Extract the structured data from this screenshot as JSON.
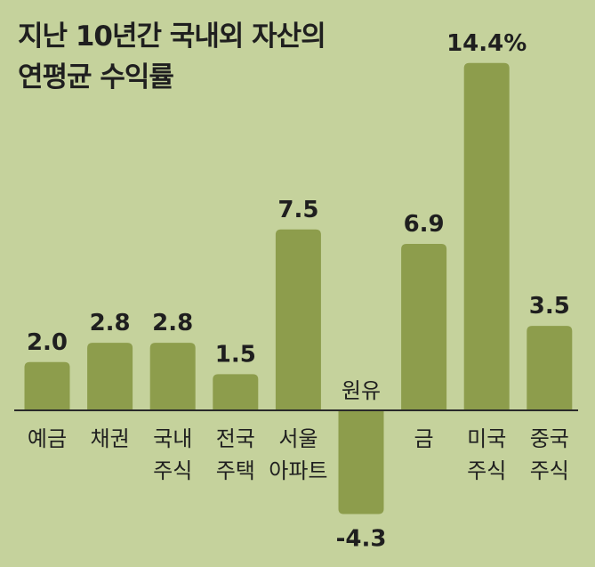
{
  "chart_data": {
    "type": "bar",
    "title_lines": [
      "지난 10년간 국내외 자산의",
      "연평균 수익률"
    ],
    "categories": [
      [
        "예금"
      ],
      [
        "채권"
      ],
      [
        "국내",
        "주식"
      ],
      [
        "전국",
        "주택"
      ],
      [
        "서울",
        "아파트"
      ],
      [
        "원유"
      ],
      [
        "금"
      ],
      [
        "미국",
        "주식"
      ],
      [
        "중국",
        "주식"
      ]
    ],
    "values": [
      2.0,
      2.8,
      2.8,
      1.5,
      7.5,
      -4.3,
      6.9,
      14.4,
      3.5
    ],
    "value_labels": [
      "2.0",
      "2.8",
      "2.8",
      "1.5",
      "7.5",
      "-4.3",
      "6.9",
      "14.4%",
      "3.5"
    ],
    "grid": false,
    "colors": {
      "background": "#c5d29c",
      "bar": "#8d9d4c",
      "axis": "#2a2a2a"
    }
  }
}
